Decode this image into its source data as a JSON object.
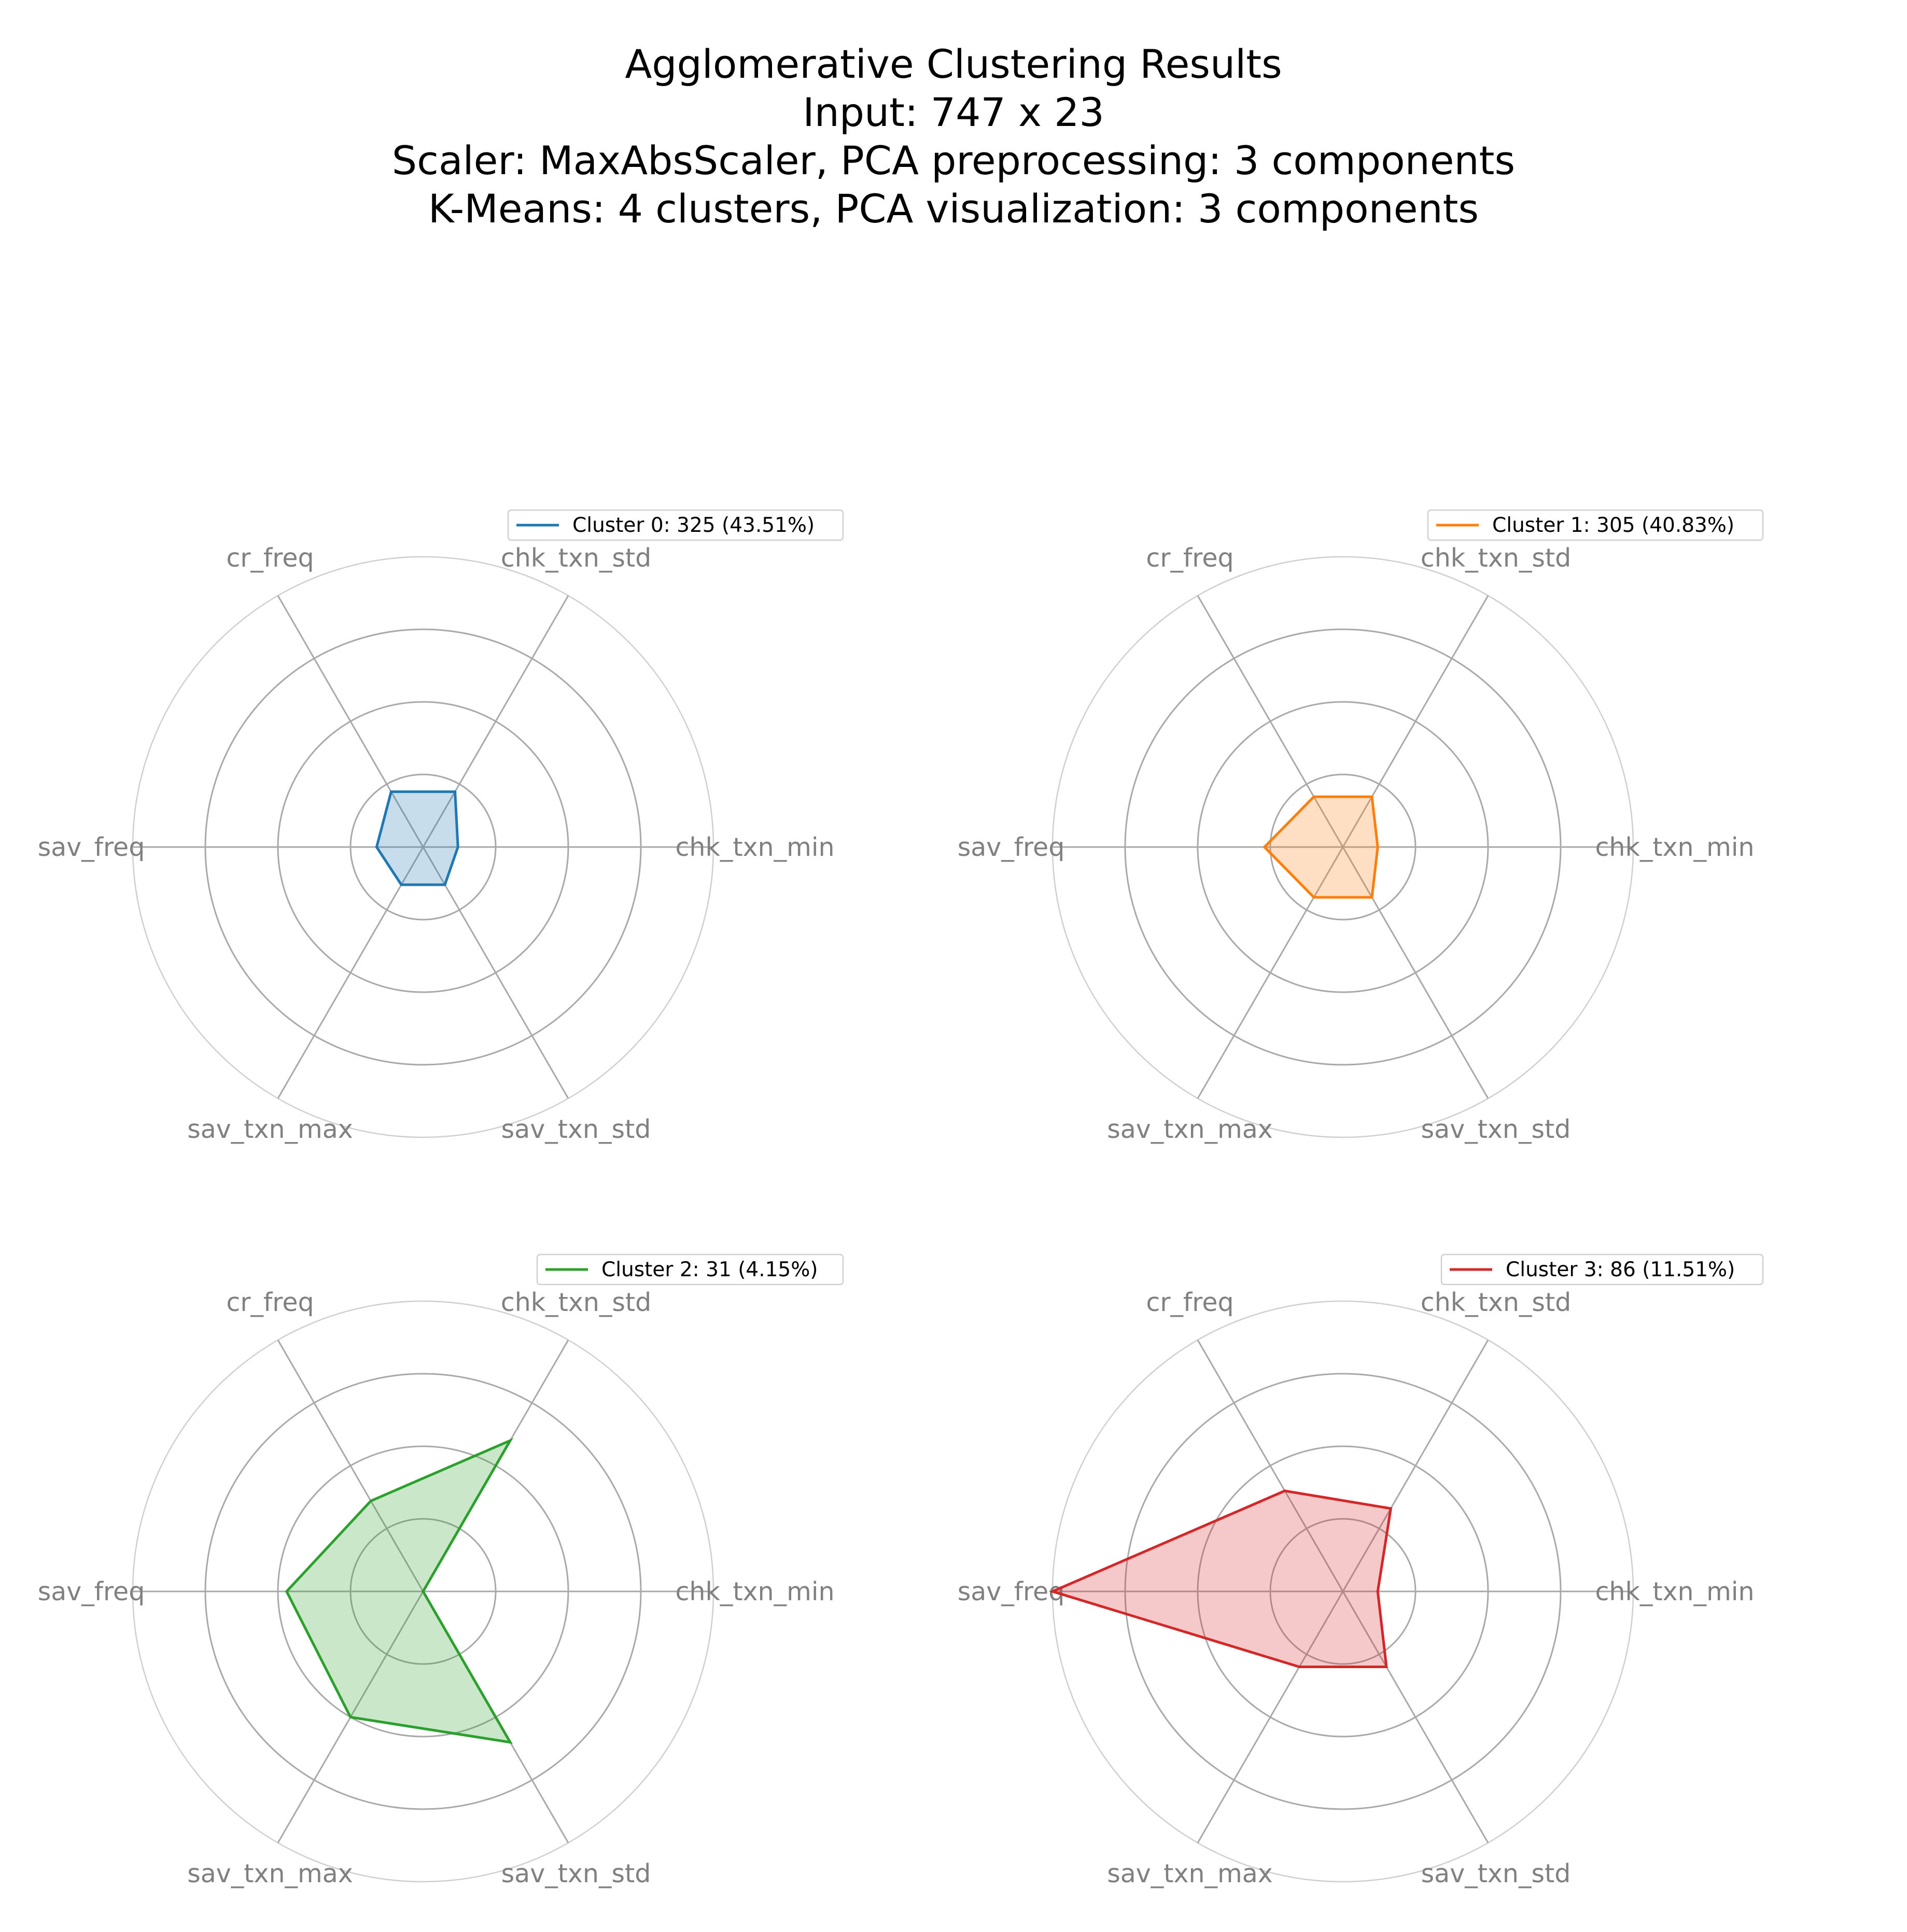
{
  "figure": {
    "title_lines": [
      "Agglomerative Clustering Results",
      "Input: 747 x 23",
      "Scaler: MaxAbsScaler, PCA preprocessing: 3 components",
      "K-Means: 4 clusters, PCA visualization: 3 components"
    ]
  },
  "chart_data": [
    {
      "type": "radar",
      "axes": [
        "chk_txn_min",
        "chk_txn_std",
        "cr_freq",
        "sav_freq",
        "sav_txn_max",
        "sav_txn_std"
      ],
      "rlim": [
        0,
        1
      ],
      "grid": true,
      "legend_position": "top-right",
      "series": [
        {
          "name": "Cluster 0: 325 (43.51%)",
          "color": "#1f77b4",
          "values": [
            0.12,
            0.22,
            0.22,
            0.16,
            0.15,
            0.15
          ]
        }
      ]
    },
    {
      "type": "radar",
      "axes": [
        "chk_txn_min",
        "chk_txn_std",
        "cr_freq",
        "sav_freq",
        "sav_txn_max",
        "sav_txn_std"
      ],
      "rlim": [
        0,
        1
      ],
      "grid": true,
      "legend_position": "top-right",
      "series": [
        {
          "name": "Cluster 1: 305 (40.83%)",
          "color": "#ff7f0e",
          "values": [
            0.12,
            0.2,
            0.2,
            0.27,
            0.2,
            0.2
          ]
        }
      ]
    },
    {
      "type": "radar",
      "axes": [
        "chk_txn_min",
        "chk_txn_std",
        "cr_freq",
        "sav_freq",
        "sav_txn_max",
        "sav_txn_std"
      ],
      "rlim": [
        0,
        1
      ],
      "grid": true,
      "legend_position": "top-right",
      "series": [
        {
          "name": "Cluster 2: 31 (4.15%)",
          "color": "#2ca02c",
          "values": [
            0.0,
            0.6,
            0.36,
            0.47,
            0.5,
            0.6
          ]
        }
      ]
    },
    {
      "type": "radar",
      "axes": [
        "chk_txn_min",
        "chk_txn_std",
        "cr_freq",
        "sav_freq",
        "sav_txn_max",
        "sav_txn_std"
      ],
      "rlim": [
        0,
        1
      ],
      "grid": true,
      "legend_position": "top-right",
      "series": [
        {
          "name": "Cluster 3: 86 (11.51%)",
          "color": "#d62728",
          "values": [
            0.12,
            0.33,
            0.4,
            1.0,
            0.3,
            0.3
          ]
        }
      ]
    }
  ]
}
